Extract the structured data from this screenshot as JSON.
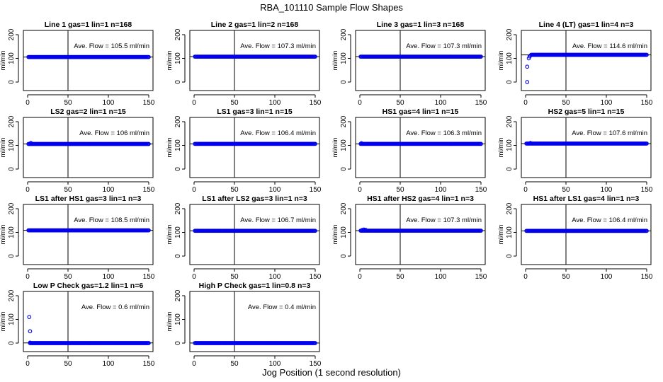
{
  "title": "RBA_101110  Sample Flow Shapes",
  "xlabel": "Jog Position (1 second resolution)",
  "colors": {
    "points": "#0000ee",
    "axis": "#000000",
    "background": "#ffffff"
  },
  "chart_data": [
    {
      "type": "scatter",
      "title": "Line 1 gas=1 lin=1 n=168",
      "ylabel": "ml/min",
      "xlim": [
        0,
        150
      ],
      "ylim": [
        0,
        200
      ],
      "x_ticks": [
        0,
        50,
        100,
        150
      ],
      "y_ticks": [
        0,
        100,
        200
      ],
      "annotation": "Ave. Flow =  105.5  ml/min",
      "flow_level": 105.5,
      "reference_line_x": 50,
      "series": [
        {
          "name": "flow",
          "x_range": [
            1,
            150
          ],
          "y": 105.5,
          "initial_points": []
        }
      ]
    },
    {
      "type": "scatter",
      "title": "Line 2 gas=1 lin=2 n=168",
      "ylabel": "ml/min",
      "xlim": [
        0,
        150
      ],
      "ylim": [
        0,
        200
      ],
      "x_ticks": [
        0,
        50,
        100,
        150
      ],
      "y_ticks": [
        0,
        100,
        200
      ],
      "annotation": "Ave. Flow =  107.3  ml/min",
      "flow_level": 107.3,
      "reference_line_x": 50,
      "series": [
        {
          "name": "flow",
          "x_range": [
            1,
            150
          ],
          "y": 107.3,
          "initial_points": []
        }
      ]
    },
    {
      "type": "scatter",
      "title": "Line 3 gas=1 lin=3 n=168",
      "ylabel": "ml/min",
      "xlim": [
        0,
        150
      ],
      "ylim": [
        0,
        200
      ],
      "x_ticks": [
        0,
        50,
        100,
        150
      ],
      "y_ticks": [
        0,
        100,
        200
      ],
      "annotation": "Ave. Flow =  107.3  ml/min",
      "flow_level": 107.3,
      "reference_line_x": 50,
      "series": [
        {
          "name": "flow",
          "x_range": [
            1,
            150
          ],
          "y": 107.3,
          "initial_points": []
        }
      ]
    },
    {
      "type": "scatter",
      "title": "Line 4 (LT) gas=1 lin=4 n=3",
      "ylabel": "ml/min",
      "xlim": [
        0,
        150
      ],
      "ylim": [
        0,
        200
      ],
      "x_ticks": [
        0,
        50,
        100,
        150
      ],
      "y_ticks": [
        0,
        100,
        200
      ],
      "annotation": "Ave. Flow =  114.6  ml/min",
      "flow_level": 114.6,
      "reference_line_x": 50,
      "series": [
        {
          "name": "flow",
          "x_range": [
            7,
            150
          ],
          "y": 115,
          "initial_points": [
            [
              2,
              0
            ],
            [
              2,
              65
            ],
            [
              4,
              100
            ],
            [
              5,
              108
            ],
            [
              6,
              112
            ]
          ]
        }
      ]
    },
    {
      "type": "scatter",
      "title": "LS2 gas=2 lin=1 n=15",
      "ylabel": "ml/min",
      "xlim": [
        0,
        150
      ],
      "ylim": [
        0,
        200
      ],
      "x_ticks": [
        0,
        50,
        100,
        150
      ],
      "y_ticks": [
        0,
        100,
        200
      ],
      "annotation": "Ave. Flow =  106  ml/min",
      "flow_level": 106,
      "reference_line_x": 50,
      "series": [
        {
          "name": "flow",
          "x_range": [
            1,
            150
          ],
          "y": 106,
          "initial_points": [
            [
              4,
              110
            ]
          ]
        }
      ]
    },
    {
      "type": "scatter",
      "title": "LS1 gas=3 lin=1 n=15",
      "ylabel": "ml/min",
      "xlim": [
        0,
        150
      ],
      "ylim": [
        0,
        200
      ],
      "x_ticks": [
        0,
        50,
        100,
        150
      ],
      "y_ticks": [
        0,
        100,
        200
      ],
      "annotation": "Ave. Flow =  106.4  ml/min",
      "flow_level": 106.4,
      "reference_line_x": 50,
      "series": [
        {
          "name": "flow",
          "x_range": [
            1,
            150
          ],
          "y": 106.4,
          "initial_points": []
        }
      ]
    },
    {
      "type": "scatter",
      "title": "HS1 gas=4 lin=1 n=15",
      "ylabel": "ml/min",
      "xlim": [
        0,
        150
      ],
      "ylim": [
        0,
        200
      ],
      "x_ticks": [
        0,
        50,
        100,
        150
      ],
      "y_ticks": [
        0,
        100,
        200
      ],
      "annotation": "Ave. Flow =  106.3  ml/min",
      "flow_level": 106.3,
      "reference_line_x": 50,
      "series": [
        {
          "name": "flow",
          "x_range": [
            1,
            150
          ],
          "y": 106.3,
          "initial_points": [
            [
              2,
              109
            ]
          ]
        }
      ]
    },
    {
      "type": "scatter",
      "title": "HS2 gas=5 lin=1 n=15",
      "ylabel": "ml/min",
      "xlim": [
        0,
        150
      ],
      "ylim": [
        0,
        200
      ],
      "x_ticks": [
        0,
        50,
        100,
        150
      ],
      "y_ticks": [
        0,
        100,
        200
      ],
      "annotation": "Ave. Flow =  107.6  ml/min",
      "flow_level": 107.6,
      "reference_line_x": 50,
      "series": [
        {
          "name": "flow",
          "x_range": [
            1,
            150
          ],
          "y": 107.6,
          "initial_points": [
            [
              6,
              110
            ]
          ]
        }
      ]
    },
    {
      "type": "scatter",
      "title": "LS1 after HS1 gas=3 lin=1 n=3",
      "ylabel": "ml/min",
      "xlim": [
        0,
        150
      ],
      "ylim": [
        0,
        200
      ],
      "x_ticks": [
        0,
        50,
        100,
        150
      ],
      "y_ticks": [
        0,
        100,
        200
      ],
      "annotation": "Ave. Flow =  108.5  ml/min",
      "flow_level": 108.5,
      "reference_line_x": 50,
      "series": [
        {
          "name": "flow",
          "x_range": [
            1,
            150
          ],
          "y": 108.5,
          "initial_points": []
        }
      ]
    },
    {
      "type": "scatter",
      "title": "LS1 after LS2 gas=3 lin=1 n=3",
      "ylabel": "ml/min",
      "xlim": [
        0,
        150
      ],
      "ylim": [
        0,
        200
      ],
      "x_ticks": [
        0,
        50,
        100,
        150
      ],
      "y_ticks": [
        0,
        100,
        200
      ],
      "annotation": "Ave. Flow =  106.7  ml/min",
      "flow_level": 106.7,
      "reference_line_x": 50,
      "series": [
        {
          "name": "flow",
          "x_range": [
            1,
            150
          ],
          "y": 106.7,
          "initial_points": []
        }
      ]
    },
    {
      "type": "scatter",
      "title": "HS1 after HS2 gas=4 lin=1 n=3",
      "ylabel": "ml/min",
      "xlim": [
        0,
        150
      ],
      "ylim": [
        0,
        200
      ],
      "x_ticks": [
        0,
        50,
        100,
        150
      ],
      "y_ticks": [
        0,
        100,
        200
      ],
      "annotation": "Ave. Flow =  107.3  ml/min",
      "flow_level": 107.3,
      "reference_line_x": 50,
      "series": [
        {
          "name": "flow",
          "x_range": [
            1,
            150
          ],
          "y": 107.3,
          "initial_points": [
            [
              3,
              110
            ],
            [
              5,
              112
            ],
            [
              7,
              111
            ]
          ]
        }
      ]
    },
    {
      "type": "scatter",
      "title": "HS1 after LS1 gas=4 lin=1 n=3",
      "ylabel": "ml/min",
      "xlim": [
        0,
        150
      ],
      "ylim": [
        0,
        200
      ],
      "x_ticks": [
        0,
        50,
        100,
        150
      ],
      "y_ticks": [
        0,
        100,
        200
      ],
      "annotation": "Ave. Flow =  106.4  ml/min",
      "flow_level": 106.4,
      "reference_line_x": 50,
      "series": [
        {
          "name": "flow",
          "x_range": [
            1,
            150
          ],
          "y": 106.4,
          "initial_points": []
        }
      ]
    },
    {
      "type": "scatter",
      "title": "Low P Check gas=1.2 lin=1 n=6",
      "ylabel": "ml/min",
      "xlim": [
        0,
        150
      ],
      "ylim": [
        0,
        200
      ],
      "x_ticks": [
        0,
        50,
        100,
        150
      ],
      "y_ticks": [
        0,
        100,
        200
      ],
      "annotation": "Ave. Flow =  0.6  ml/min",
      "flow_level": 0.6,
      "reference_line_x": 50,
      "series": [
        {
          "name": "flow",
          "x_range": [
            3,
            150
          ],
          "y": 0,
          "initial_points": [
            [
              2,
              110
            ],
            [
              3,
              50
            ],
            [
              3,
              2
            ]
          ]
        }
      ]
    },
    {
      "type": "scatter",
      "title": "High P Check gas=1 lin=0.8 n=3",
      "ylabel": "ml/min",
      "xlim": [
        0,
        150
      ],
      "ylim": [
        0,
        200
      ],
      "x_ticks": [
        0,
        50,
        100,
        150
      ],
      "y_ticks": [
        0,
        100,
        200
      ],
      "annotation": "Ave. Flow =  0.4  ml/min",
      "flow_level": 0.4,
      "reference_line_x": 50,
      "series": [
        {
          "name": "flow",
          "x_range": [
            1,
            150
          ],
          "y": 0,
          "initial_points": []
        }
      ]
    }
  ]
}
